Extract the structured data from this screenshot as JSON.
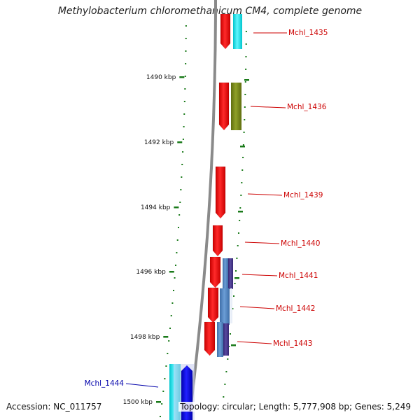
{
  "title": "Methylobacterium chloromethanicum CM4, complete genome",
  "accession": "Accession: NC_011757",
  "topology": "Topology: circular; Length: 5,777,908 bp; Genes: 5,249",
  "ticks": [
    "1490 kbp",
    "1492 kbp",
    "1494 kbp",
    "1496 kbp",
    "1498 kbp",
    "1500 kbp"
  ],
  "genes": [
    {
      "label": "Mchl_1435",
      "color": "#cc0000"
    },
    {
      "label": "Mchl_1436",
      "color": "#cc0000"
    },
    {
      "label": "Mchl_1439",
      "color": "#cc0000"
    },
    {
      "label": "Mchl_1440",
      "color": "#cc0000"
    },
    {
      "label": "Mchl_1441",
      "color": "#cc0000"
    },
    {
      "label": "Mchl_1442",
      "color": "#cc0000"
    },
    {
      "label": "Mchl_1443",
      "color": "#cc0000"
    },
    {
      "label": "Mchl_1444",
      "color": "#0000aa"
    }
  ],
  "colors": {
    "backbone": "#8a8a8a",
    "tick_marks": "#1a7a1a",
    "forward_gene": "#ff0000",
    "cyan_feature": "#00e5ee",
    "olive_feature": "#7a8a1a",
    "steel_feature": "#4f86c6",
    "purple_feature": "#4b3a8a",
    "reverse_gene": "#0000dd"
  }
}
